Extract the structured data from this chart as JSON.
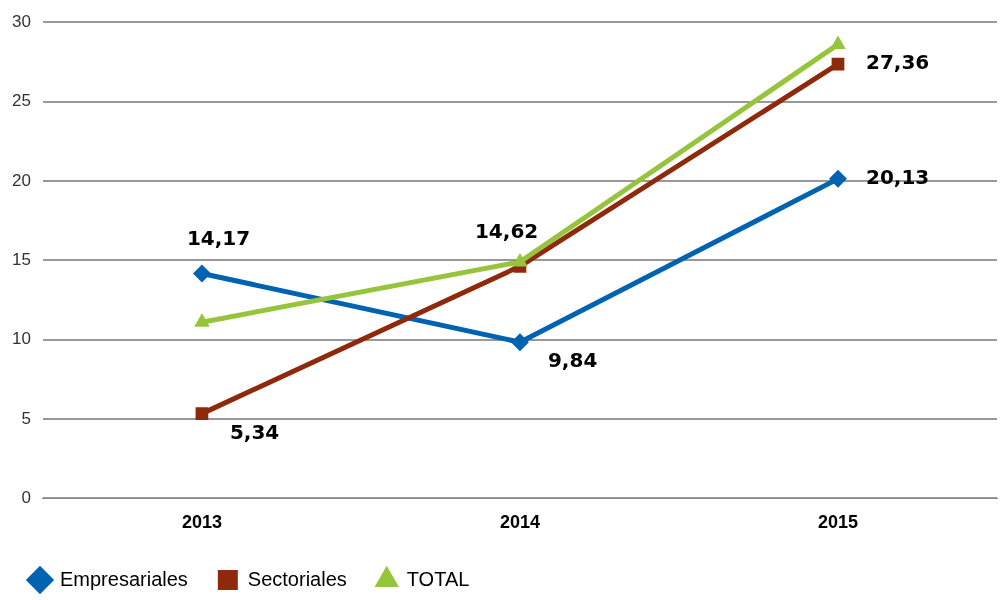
{
  "chart_data": {
    "type": "line",
    "categories": [
      "2013",
      "2014",
      "2015"
    ],
    "series": [
      {
        "name": "Empresariales",
        "color": "#0063b1",
        "marker": "diamond",
        "values": [
          14.17,
          9.84,
          20.13
        ],
        "value_labels": [
          "14,17",
          "9,84",
          "20,13"
        ]
      },
      {
        "name": "Sectoriales",
        "color": "#8e2a0b",
        "marker": "square",
        "values": [
          5.34,
          14.62,
          27.36
        ],
        "value_labels": [
          "5,34",
          "14,62",
          "27,36"
        ]
      },
      {
        "name": "TOTAL",
        "color": "#97c43d",
        "marker": "triangle",
        "values": [
          11.1,
          14.9,
          28.6
        ]
      }
    ],
    "ylim": [
      0,
      30
    ],
    "yticks": [
      0,
      5,
      10,
      15,
      20,
      25,
      30
    ],
    "grid": "y",
    "legend": "bottom left",
    "line_style": "solid"
  }
}
